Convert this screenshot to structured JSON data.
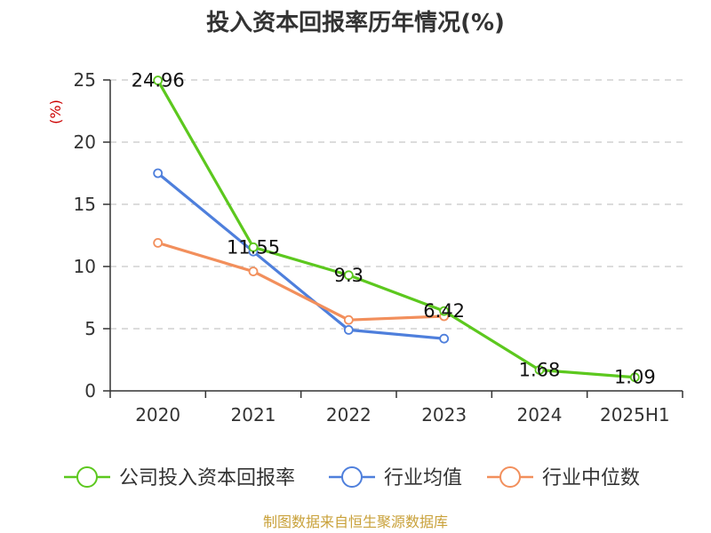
{
  "chart_data": {
    "type": "line",
    "title": "投入资本回报率历年情况(%)",
    "ylabel": "(%)",
    "xlabel": "",
    "categories": [
      "2020",
      "2021",
      "2022",
      "2023",
      "2024",
      "2025H1"
    ],
    "ylim": [
      0,
      25
    ],
    "yticks": [
      0,
      5,
      10,
      15,
      20,
      25
    ],
    "grid": true,
    "legend_position": "bottom",
    "series": [
      {
        "name": "公司投入资本回报率",
        "color": "#5cc81e",
        "values": [
          24.96,
          11.55,
          9.3,
          6.42,
          1.68,
          1.09
        ],
        "labels": [
          "24.96",
          "11.55",
          "9.3",
          "6.42",
          "1.68",
          "1.09"
        ]
      },
      {
        "name": "行业均值",
        "color": "#4e7fdc",
        "values": [
          17.5,
          11.2,
          4.9,
          4.2,
          null,
          null
        ]
      },
      {
        "name": "行业中位数",
        "color": "#f28f5c",
        "values": [
          11.9,
          9.6,
          5.7,
          6.0,
          null,
          null
        ]
      }
    ]
  },
  "source": "制图数据来自恒生聚源数据库"
}
